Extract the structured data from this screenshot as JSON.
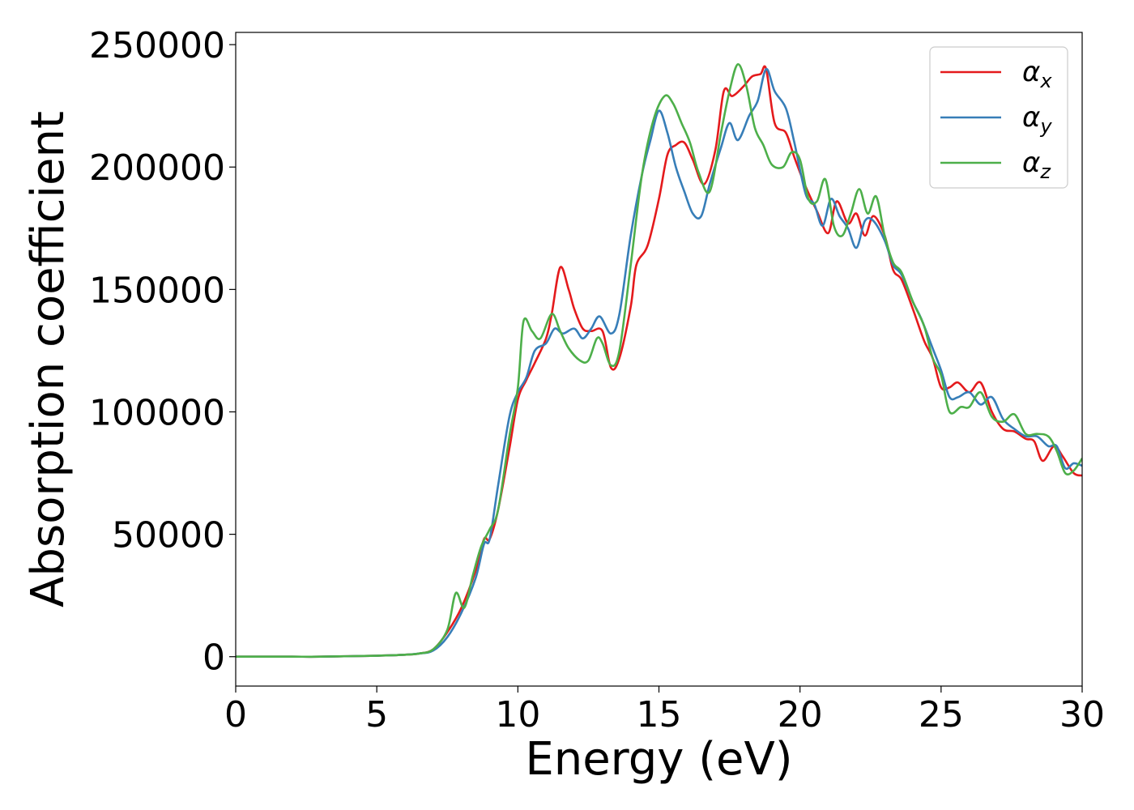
{
  "chart_data": {
    "type": "line",
    "title": "",
    "xlabel": "Energy (eV)",
    "ylabel": "Absorption coefficient",
    "xlim": [
      0,
      30
    ],
    "ylim": [
      -12000,
      255000
    ],
    "xticks": [
      0,
      5,
      10,
      15,
      20,
      25,
      30
    ],
    "yticks": [
      0,
      50000,
      100000,
      150000,
      200000,
      250000
    ],
    "grid": false,
    "legend_position": "top-right",
    "series": [
      {
        "name": "α",
        "subscript": "x",
        "color": "#e41a1c",
        "x": [
          0,
          1,
          2,
          3,
          4,
          5,
          6,
          6.5,
          7,
          7.5,
          8,
          8.5,
          8.8,
          9,
          9.3,
          9.7,
          10,
          10.3,
          10.6,
          11,
          11.2,
          11.5,
          11.8,
          12,
          12.3,
          12.6,
          13,
          13.3,
          13.6,
          14,
          14.2,
          14.6,
          15,
          15.3,
          15.6,
          15.9,
          16.2,
          16.6,
          17,
          17.3,
          17.6,
          18,
          18.3,
          18.6,
          18.8,
          19.1,
          19.5,
          19.8,
          20.2,
          20.6,
          21,
          21.3,
          21.7,
          22,
          22.3,
          22.6,
          23,
          23.3,
          23.6,
          24,
          24.4,
          24.7,
          25,
          25.3,
          25.6,
          26,
          26.4,
          26.8,
          27.2,
          27.6,
          28,
          28.3,
          28.6,
          29,
          29.3,
          29.7,
          30
        ],
        "y": [
          0,
          0,
          0,
          0,
          200,
          400,
          800,
          1300,
          3000,
          10000,
          20000,
          35000,
          48000,
          48000,
          60000,
          85000,
          105000,
          113000,
          120000,
          130000,
          140000,
          159000,
          150000,
          142000,
          134000,
          133000,
          133000,
          118000,
          122000,
          143000,
          160000,
          168000,
          187000,
          205000,
          209000,
          210000,
          203000,
          193000,
          207000,
          231000,
          229000,
          233000,
          237000,
          238000,
          240000,
          218000,
          214000,
          204000,
          192000,
          182000,
          173000,
          186000,
          177000,
          181000,
          172000,
          180000,
          172000,
          158000,
          154000,
          142000,
          129000,
          122000,
          110000,
          110000,
          112000,
          108000,
          112000,
          100000,
          93000,
          92000,
          89000,
          88000,
          80000,
          86000,
          82000,
          75000,
          74000
        ]
      },
      {
        "name": "α",
        "subscript": "y",
        "color": "#377eb8",
        "x": [
          0,
          1,
          2,
          3,
          4,
          5,
          6,
          6.5,
          7,
          7.5,
          8,
          8.5,
          8.8,
          9,
          9.3,
          9.7,
          10,
          10.3,
          10.6,
          11,
          11.3,
          11.6,
          12,
          12.3,
          12.6,
          12.9,
          13.3,
          13.6,
          14,
          14.4,
          14.7,
          15,
          15.3,
          15.6,
          15.9,
          16.2,
          16.5,
          16.8,
          17.2,
          17.5,
          17.8,
          18.2,
          18.5,
          18.8,
          19.1,
          19.5,
          19.8,
          20.2,
          20.5,
          20.8,
          21.1,
          21.4,
          21.7,
          22,
          22.3,
          22.6,
          23,
          23.3,
          23.6,
          24,
          24.3,
          24.7,
          25,
          25.3,
          25.6,
          26,
          26.4,
          26.8,
          27.2,
          27.6,
          28,
          28.4,
          28.8,
          29.1,
          29.4,
          29.7,
          30
        ],
        "y": [
          0,
          0,
          0,
          0,
          200,
          400,
          800,
          1300,
          2500,
          8000,
          18000,
          32000,
          46000,
          48000,
          70000,
          98000,
          108000,
          114000,
          125000,
          128000,
          134000,
          132000,
          134000,
          130000,
          134000,
          139000,
          132000,
          140000,
          172000,
          197000,
          211000,
          223000,
          214000,
          200000,
          190000,
          181000,
          180000,
          193000,
          208000,
          218000,
          211000,
          221000,
          227000,
          240000,
          231000,
          224000,
          210000,
          189000,
          185000,
          176000,
          187000,
          180000,
          175000,
          167000,
          178000,
          178000,
          170000,
          160000,
          156000,
          145000,
          138000,
          126000,
          117000,
          106000,
          106000,
          108000,
          103000,
          106000,
          97000,
          93000,
          90000,
          90000,
          86000,
          86000,
          77000,
          79000,
          78000
        ]
      },
      {
        "name": "α",
        "subscript": "z",
        "color": "#4daf4a",
        "x": [
          0,
          1,
          2,
          3,
          4,
          5,
          6,
          6.5,
          7,
          7.5,
          7.8,
          8.1,
          8.4,
          8.7,
          9,
          9.3,
          9.7,
          10,
          10.2,
          10.5,
          10.8,
          11.2,
          11.5,
          11.8,
          12.2,
          12.5,
          12.8,
          13,
          13.3,
          13.6,
          14,
          14.4,
          14.8,
          15.2,
          15.5,
          15.8,
          16.1,
          16.4,
          16.8,
          17.2,
          17.5,
          17.8,
          18.1,
          18.4,
          18.7,
          19,
          19.4,
          19.7,
          20,
          20.3,
          20.6,
          20.9,
          21.2,
          21.5,
          21.8,
          22.1,
          22.4,
          22.7,
          23,
          23.3,
          23.6,
          24,
          24.4,
          24.7,
          25,
          25.3,
          25.7,
          26,
          26.4,
          26.8,
          27.2,
          27.6,
          28,
          28.4,
          28.8,
          29.1,
          29.4,
          29.7,
          30
        ],
        "y": [
          0,
          0,
          0,
          0,
          200,
          400,
          800,
          1300,
          3000,
          11000,
          26000,
          20000,
          33000,
          45000,
          52000,
          60000,
          90000,
          110000,
          137000,
          133000,
          130000,
          140000,
          133000,
          126000,
          121000,
          121000,
          130000,
          128000,
          119000,
          125000,
          160000,
          197000,
          219000,
          229000,
          226000,
          218000,
          210000,
          198000,
          190000,
          214000,
          231000,
          242000,
          233000,
          216000,
          209000,
          201000,
          200000,
          206000,
          203000,
          187000,
          186000,
          195000,
          176000,
          172000,
          181000,
          191000,
          181000,
          188000,
          172000,
          161000,
          157000,
          145000,
          135000,
          122000,
          115000,
          100000,
          102000,
          102000,
          108000,
          98000,
          96000,
          99000,
          91000,
          91000,
          90000,
          84000,
          75000,
          76000,
          81000
        ]
      }
    ]
  }
}
